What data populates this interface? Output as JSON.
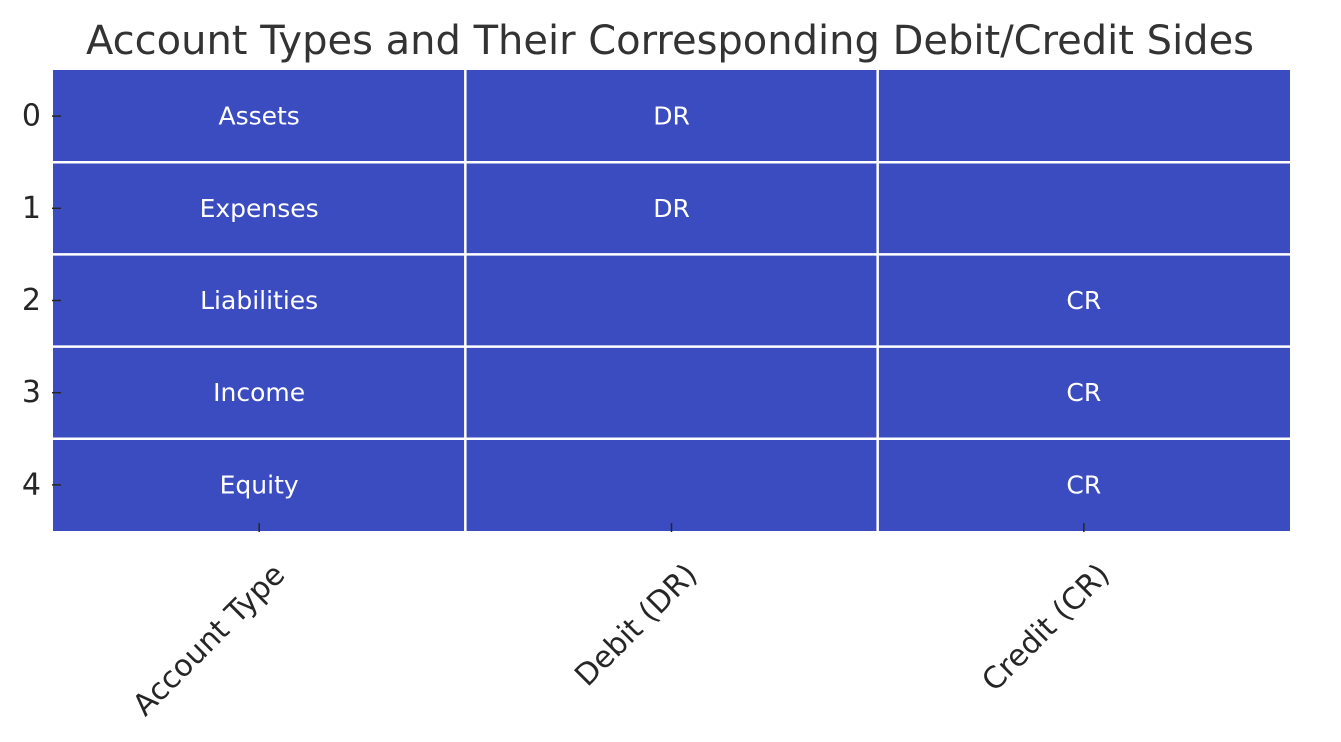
{
  "chart_data": {
    "type": "table",
    "title": "Account Types and Their Corresponding Debit/Credit Sides",
    "columns": [
      "Account Type",
      "Debit (DR)",
      "Credit (CR)"
    ],
    "row_index": [
      "0",
      "1",
      "2",
      "3",
      "4"
    ],
    "rows": [
      [
        "Assets",
        "DR",
        ""
      ],
      [
        "Expenses",
        "DR",
        ""
      ],
      [
        "Liabilities",
        "",
        "CR"
      ],
      [
        "Income",
        "",
        "CR"
      ],
      [
        "Equity",
        "",
        "CR"
      ]
    ],
    "cell_color": "#3b4cc0",
    "cell_text_color": "#ffffff",
    "grid_line_color": "#ffffff",
    "legend": "none"
  }
}
